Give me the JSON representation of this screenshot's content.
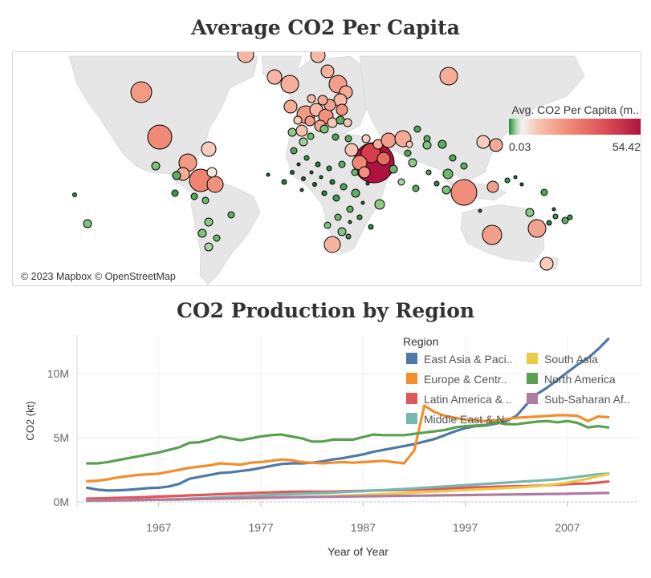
{
  "map": {
    "title": "Average CO2 Per Capita",
    "attribution": "© 2023 Mapbox © OpenStreetMap",
    "legend_title": "Avg. CO2 Per Capita (m..",
    "legend_min": "0.03",
    "legend_max": "54.42"
  },
  "line": {
    "title": "CO2 Production by Region",
    "xlabel": "Year of Year",
    "ylabel": "CO2 (kt)",
    "legend_title": "Region"
  },
  "colors": {
    "east_asia": "#4e79a7",
    "europe": "#f28e2b",
    "latin_america": "#e15759",
    "middle_east": "#76b7b2",
    "south_asia": "#edc948",
    "north_america": "#59a14f",
    "sub_saharan": "#b07aa1"
  },
  "chart_data": {
    "type": "line",
    "title": "CO2 Production by Region",
    "xlabel": "Year of Year",
    "ylabel": "CO2 (kt)",
    "x_ticks": [
      "1967",
      "1977",
      "1987",
      "1997",
      "2007"
    ],
    "y_ticks": [
      "0M",
      "5M",
      "10M"
    ],
    "ylim": [
      0,
      13000000
    ],
    "xlim": [
      1959,
      2014
    ],
    "legend_placement": "top-right",
    "legend_labels": [
      "East Asia & Paci..",
      "South Asia",
      "Europe & Centr..",
      "North America",
      "Latin America & ..",
      "Sub-Saharan Af..",
      "Middle East & N.."
    ],
    "x": [
      1960,
      1961,
      1962,
      1963,
      1964,
      1965,
      1966,
      1967,
      1968,
      1969,
      1970,
      1971,
      1972,
      1973,
      1974,
      1975,
      1976,
      1977,
      1978,
      1979,
      1980,
      1981,
      1982,
      1983,
      1984,
      1985,
      1986,
      1987,
      1988,
      1989,
      1990,
      1991,
      1992,
      1993,
      1994,
      1995,
      1996,
      1997,
      1998,
      1999,
      2000,
      2001,
      2002,
      2003,
      2004,
      2005,
      2006,
      2007,
      2008,
      2009,
      2010,
      2011
    ],
    "series": [
      {
        "name": "East Asia & Paci..",
        "color_key": "east_asia",
        "values": [
          1100000,
          950000,
          880000,
          900000,
          940000,
          1000000,
          1070000,
          1100000,
          1200000,
          1400000,
          1800000,
          1950000,
          2100000,
          2250000,
          2300000,
          2400000,
          2500000,
          2650000,
          2800000,
          2950000,
          3000000,
          3000000,
          3050000,
          3150000,
          3300000,
          3400000,
          3550000,
          3700000,
          3900000,
          4050000,
          4200000,
          4350000,
          4500000,
          4700000,
          4900000,
          5200000,
          5500000,
          5750000,
          5900000,
          5950000,
          6100000,
          6300000,
          6700000,
          7600000,
          8400000,
          8900000,
          9500000,
          10100000,
          10700000,
          11200000,
          11900000,
          12700000
        ]
      },
      {
        "name": "Europe & Centr..",
        "color_key": "europe",
        "values": [
          1600000,
          1650000,
          1750000,
          1900000,
          2000000,
          2100000,
          2150000,
          2200000,
          2350000,
          2500000,
          2650000,
          2750000,
          2850000,
          3000000,
          2950000,
          2900000,
          3050000,
          3100000,
          3200000,
          3300000,
          3250000,
          3100000,
          3050000,
          3000000,
          3050000,
          3100000,
          3050000,
          3100000,
          3150000,
          3200000,
          3100000,
          3000000,
          4000000,
          7500000,
          7000000,
          6700000,
          6550000,
          6400000,
          6350000,
          6300000,
          6350000,
          6450000,
          6550000,
          6600000,
          6650000,
          6700000,
          6750000,
          6750000,
          6700000,
          6300000,
          6650000,
          6600000
        ]
      },
      {
        "name": "Latin America & ..",
        "color_key": "latin_america",
        "values": [
          250000,
          270000,
          290000,
          310000,
          330000,
          350000,
          380000,
          410000,
          440000,
          470000,
          500000,
          530000,
          560000,
          600000,
          630000,
          650000,
          680000,
          710000,
          740000,
          770000,
          790000,
          800000,
          790000,
          790000,
          800000,
          820000,
          840000,
          860000,
          880000,
          900000,
          910000,
          930000,
          950000,
          980000,
          1000000,
          1030000,
          1070000,
          1100000,
          1130000,
          1150000,
          1180000,
          1200000,
          1220000,
          1230000,
          1260000,
          1300000,
          1340000,
          1380000,
          1420000,
          1430000,
          1500000,
          1580000
        ]
      },
      {
        "name": "Middle East & N..",
        "color_key": "middle_east",
        "values": [
          80000,
          90000,
          100000,
          110000,
          125000,
          140000,
          160000,
          180000,
          200000,
          220000,
          250000,
          280000,
          310000,
          350000,
          380000,
          410000,
          450000,
          490000,
          530000,
          570000,
          600000,
          630000,
          660000,
          690000,
          720000,
          760000,
          800000,
          840000,
          880000,
          920000,
          960000,
          1000000,
          1050000,
          1100000,
          1150000,
          1200000,
          1250000,
          1300000,
          1350000,
          1400000,
          1450000,
          1500000,
          1550000,
          1600000,
          1650000,
          1700000,
          1750000,
          1850000,
          1950000,
          2050000,
          2150000,
          2200000
        ]
      },
      {
        "name": "South Asia",
        "color_key": "south_asia",
        "values": [
          100000,
          110000,
          120000,
          130000,
          140000,
          150000,
          160000,
          170000,
          180000,
          190000,
          200000,
          210000,
          220000,
          235000,
          250000,
          265000,
          280000,
          300000,
          320000,
          340000,
          360000,
          380000,
          400000,
          420000,
          450000,
          480000,
          510000,
          540000,
          570000,
          600000,
          640000,
          680000,
          720000,
          760000,
          800000,
          840000,
          880000,
          920000,
          960000,
          1000000,
          1040000,
          1080000,
          1120000,
          1160000,
          1220000,
          1300000,
          1400000,
          1500000,
          1650000,
          1800000,
          2000000,
          2150000
        ]
      },
      {
        "name": "North America",
        "color_key": "north_america",
        "values": [
          3000000,
          3000000,
          3100000,
          3250000,
          3400000,
          3550000,
          3700000,
          3850000,
          4050000,
          4250000,
          4600000,
          4650000,
          4850000,
          5100000,
          4950000,
          4800000,
          4950000,
          5100000,
          5200000,
          5250000,
          5100000,
          4950000,
          4700000,
          4700000,
          4850000,
          4850000,
          4850000,
          5050000,
          5250000,
          5200000,
          5200000,
          5200000,
          5300000,
          5400000,
          5500000,
          5600000,
          5800000,
          5900000,
          5950000,
          6000000,
          6200000,
          6050000,
          6050000,
          6150000,
          6250000,
          6300000,
          6200000,
          6300000,
          6150000,
          5800000,
          5900000,
          5800000
        ]
      },
      {
        "name": "Sub-Saharan Af..",
        "color_key": "sub_saharan",
        "values": [
          100000,
          110000,
          120000,
          130000,
          140000,
          150000,
          160000,
          170000,
          180000,
          190000,
          210000,
          225000,
          240000,
          255000,
          270000,
          285000,
          300000,
          315000,
          330000,
          345000,
          360000,
          370000,
          380000,
          390000,
          400000,
          410000,
          420000,
          430000,
          440000,
          450000,
          460000,
          470000,
          480000,
          490000,
          500000,
          510000,
          520000,
          530000,
          540000,
          550000,
          560000,
          570000,
          580000,
          590000,
          600000,
          610000,
          620000,
          630000,
          650000,
          660000,
          680000,
          700000
        ]
      }
    ]
  }
}
